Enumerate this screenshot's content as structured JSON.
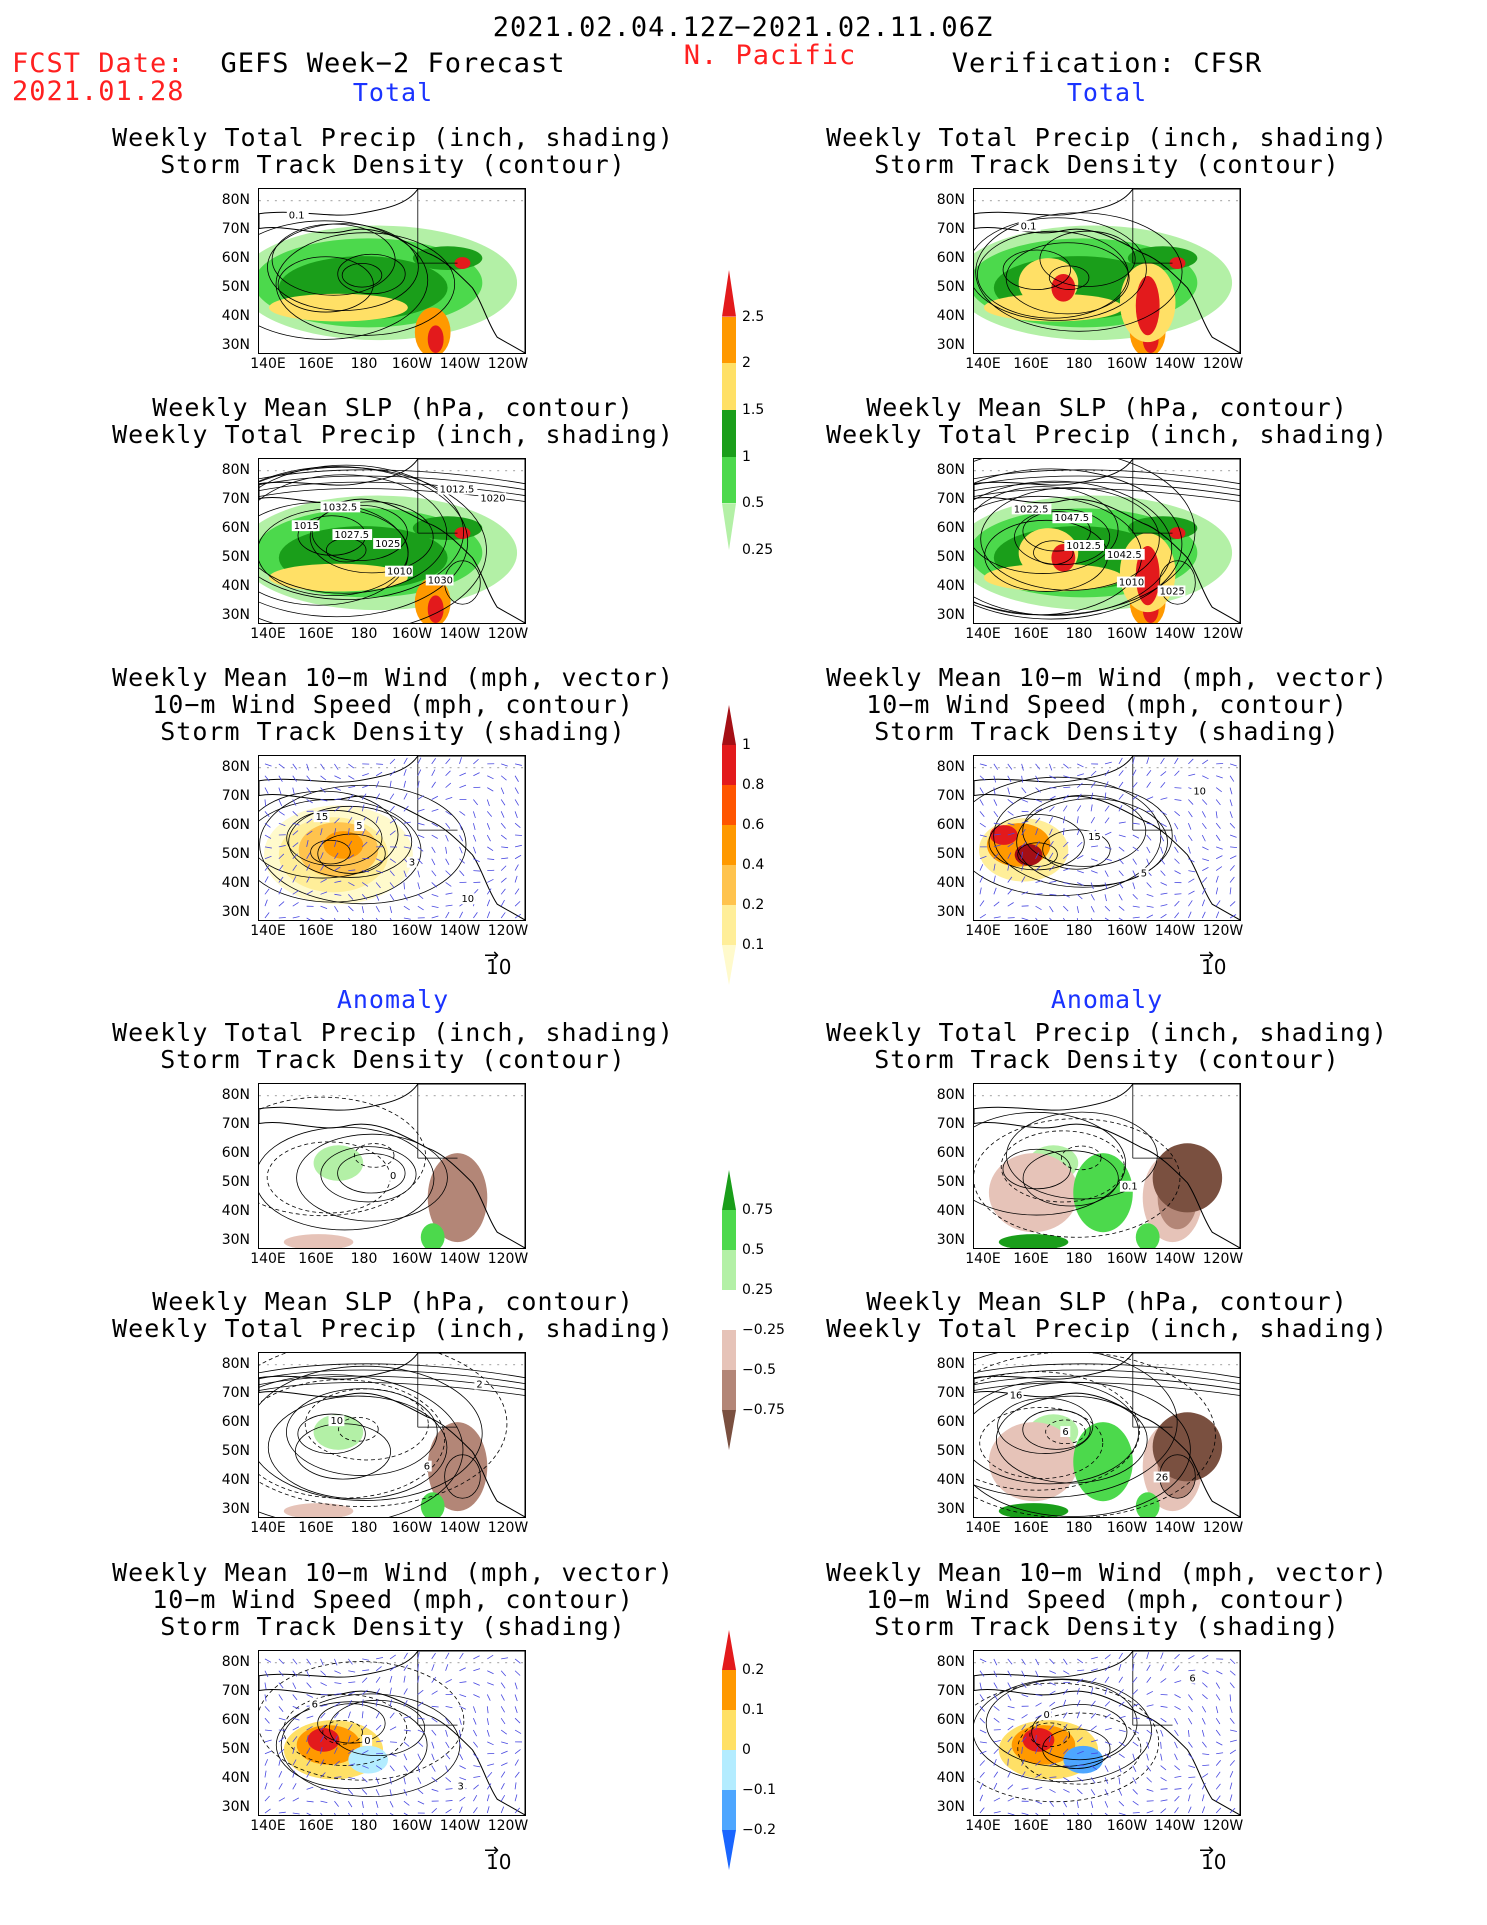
{
  "header": {
    "date_range": "2021.02.04.12Z−2021.02.11.06Z",
    "region": "N. Pacific",
    "fcst_label": "FCST Date:",
    "fcst_date": "2021.01.28",
    "left_title": "GEFS Week−2 Forecast",
    "right_title": "Verification: CFSR"
  },
  "sections": {
    "total": "Total",
    "anomaly": "Anomaly"
  },
  "axes": {
    "lat_ticks": [
      "80N",
      "70N",
      "60N",
      "50N",
      "40N",
      "30N"
    ],
    "lon_ticks": [
      "140E",
      "160E",
      "180",
      "160W",
      "140W",
      "120W"
    ]
  },
  "panel_titles": {
    "precip_storm": [
      "Weekly Total Precip (inch, shading)",
      "Storm Track Density (contour)"
    ],
    "slp_precip": [
      "Weekly Mean SLP (hPa, contour)",
      "Weekly Total Precip (inch, shading)"
    ],
    "wind_storm": [
      "Weekly Mean 10−m Wind (mph, vector)",
      "10−m Wind Speed (mph, contour)",
      "Storm Track Density (shading)"
    ]
  },
  "vector_ref": "10",
  "colorbars": {
    "precip_total": {
      "labels": [
        "2.5",
        "2",
        "1.5",
        "1",
        "0.5",
        "0.25"
      ],
      "colors": [
        "#e31a1c",
        "#ff9900",
        "#ffe066",
        "#1a9e1a",
        "#4cd94c",
        "#b3f0a6"
      ]
    },
    "storm_total": {
      "labels": [
        "1",
        "0.8",
        "0.6",
        "0.4",
        "0.2",
        "0.1"
      ],
      "colors": [
        "#a50f15",
        "#e31a1c",
        "#ff5500",
        "#ff9900",
        "#ffc34d",
        "#ffee99",
        "#fffacc"
      ]
    },
    "precip_anom": {
      "labels": [
        "0.75",
        "0.5",
        "0.25",
        "−0.25",
        "−0.5",
        "−0.75"
      ],
      "colors": [
        "#1a9e1a",
        "#4cd94c",
        "#b3f0a6",
        "#ffffff",
        "#e6c3b8",
        "#b38677",
        "#7a5040"
      ]
    },
    "storm_anom": {
      "labels": [
        "0.2",
        "0.1",
        "0",
        "−0.1",
        "−0.2"
      ],
      "colors": [
        "#e31a1c",
        "#ff9900",
        "#ffe066",
        "#b3ecff",
        "#4da6ff",
        "#1a66ff"
      ]
    }
  },
  "contour_labels": {
    "p1l": [
      "0.1"
    ],
    "p1r": [
      "0.1"
    ],
    "p2l": [
      "1032.5",
      "1025",
      "1030",
      "1020",
      "1027.5",
      "1010",
      "1012.5",
      "1015"
    ],
    "p2r": [
      "1047.5",
      "1042.5",
      "1025",
      "1022.5",
      "1012.5",
      "1010"
    ],
    "p3l": [
      "5",
      "3",
      "10",
      "15"
    ],
    "p3r": [
      "15",
      "5",
      "10"
    ],
    "p4l": [
      "0"
    ],
    "p4r": [
      "0.1"
    ],
    "p5l": [
      "6",
      "2",
      "10"
    ],
    "p5r": [
      "26",
      "16",
      "6"
    ],
    "p6l": [
      "3",
      "6",
      "0"
    ],
    "p6r": [
      "6",
      "0"
    ]
  }
}
